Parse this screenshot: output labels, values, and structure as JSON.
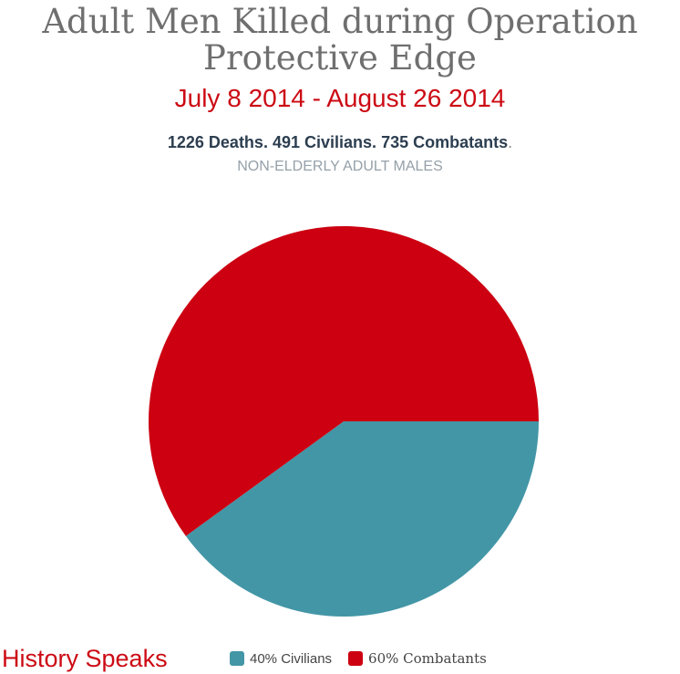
{
  "chart_data": {
    "type": "pie",
    "title": [
      "Adult Men Killed during Operation",
      "Protective Edge"
    ],
    "subtitle": "July 8 2014 - August 26 2014",
    "stats": {
      "deaths": "1226 Deaths.",
      "civilians": "491 Civilians.",
      "combatants": "735 Combatants",
      "trailing": "."
    },
    "caption": "NON-ELDERLY ADULT MALES",
    "slices": [
      {
        "label": "Civilians",
        "value": 40,
        "count": 491,
        "color": "#4396a6",
        "legend_text": "40% Civilians"
      },
      {
        "label": "Combatants",
        "value": 60,
        "count": 735,
        "color": "#cc0011",
        "legend_text": "60% Combatants"
      }
    ],
    "start_angle_direction": "3 o'clock, Civilians clockwise",
    "legend_position": "bottom"
  },
  "branding": {
    "text": "History Speaks"
  }
}
